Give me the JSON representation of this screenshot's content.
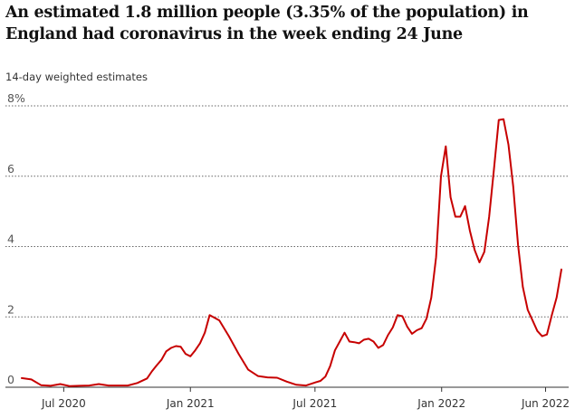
{
  "chart_data": {
    "type": "line",
    "title": "An estimated 1.8 million people (3.35% of the population) in England had coronavirus in the week ending 24 June",
    "subtitle": "14-day weighted estimates",
    "ylim": [
      0,
      8
    ],
    "y_ticks": [
      "0",
      "2",
      "4",
      "6",
      "8%"
    ],
    "y_tick_values": [
      0,
      2,
      4,
      6,
      8
    ],
    "x_ticks": [
      "Jul 2020",
      "Jan 2021",
      "Jul 2021",
      "Jan 2022",
      "Jun 2022"
    ],
    "x_tick_dates": [
      "2020-07-01",
      "2021-01-01",
      "2021-07-01",
      "2022-01-01",
      "2022-06-01"
    ],
    "grid": true,
    "line_color": "#c70000",
    "series": [
      {
        "x": [
          "2020-05-01",
          "2020-05-15",
          "2020-05-29",
          "2020-06-12",
          "2020-06-26",
          "2020-07-10",
          "2020-07-24",
          "2020-08-07",
          "2020-08-21",
          "2020-09-04",
          "2020-09-18",
          "2020-10-02",
          "2020-10-16",
          "2020-10-30",
          "2020-11-06",
          "2020-11-13",
          "2020-11-20",
          "2020-11-27",
          "2020-12-04",
          "2020-12-11",
          "2020-12-18",
          "2020-12-25",
          "2021-01-01",
          "2021-01-08",
          "2021-01-15",
          "2021-01-22",
          "2021-01-29",
          "2021-02-12",
          "2021-02-26",
          "2021-03-12",
          "2021-03-26",
          "2021-04-09",
          "2021-04-23",
          "2021-05-07",
          "2021-05-21",
          "2021-06-04",
          "2021-06-18",
          "2021-07-02",
          "2021-07-09",
          "2021-07-16",
          "2021-07-23",
          "2021-07-30",
          "2021-08-06",
          "2021-08-13",
          "2021-08-20",
          "2021-08-27",
          "2021-09-03",
          "2021-09-10",
          "2021-09-17",
          "2021-09-24",
          "2021-10-01",
          "2021-10-08",
          "2021-10-15",
          "2021-10-22",
          "2021-10-29",
          "2021-11-05",
          "2021-11-12",
          "2021-11-19",
          "2021-11-26",
          "2021-12-03",
          "2021-12-10",
          "2021-12-17",
          "2021-12-24",
          "2021-12-31",
          "2022-01-07",
          "2022-01-14",
          "2022-01-21",
          "2022-01-28",
          "2022-02-04",
          "2022-02-11",
          "2022-02-18",
          "2022-02-25",
          "2022-03-04",
          "2022-03-11",
          "2022-03-18",
          "2022-03-25",
          "2022-04-01",
          "2022-04-08",
          "2022-04-15",
          "2022-04-22",
          "2022-04-29",
          "2022-05-06",
          "2022-05-13",
          "2022-05-20",
          "2022-05-27",
          "2022-06-03",
          "2022-06-10",
          "2022-06-17",
          "2022-06-24"
        ],
        "values": [
          0.26,
          0.22,
          0.06,
          0.04,
          0.09,
          0.03,
          0.04,
          0.05,
          0.09,
          0.05,
          0.05,
          0.05,
          0.12,
          0.25,
          0.45,
          0.62,
          0.78,
          1.02,
          1.12,
          1.17,
          1.15,
          0.95,
          0.88,
          1.05,
          1.25,
          1.55,
          2.05,
          1.9,
          1.45,
          0.95,
          0.5,
          0.32,
          0.28,
          0.27,
          0.16,
          0.07,
          0.05,
          0.14,
          0.18,
          0.3,
          0.6,
          1.05,
          1.3,
          1.55,
          1.3,
          1.28,
          1.25,
          1.35,
          1.38,
          1.3,
          1.12,
          1.2,
          1.48,
          1.7,
          2.05,
          2.02,
          1.72,
          1.52,
          1.62,
          1.68,
          1.95,
          2.55,
          3.7,
          6.0,
          6.85,
          5.4,
          4.85,
          4.85,
          5.15,
          4.45,
          3.9,
          3.55,
          3.85,
          4.85,
          6.2,
          7.6,
          7.62,
          6.9,
          5.7,
          4.05,
          2.85,
          2.2,
          1.9,
          1.6,
          1.45,
          1.5,
          2.05,
          2.55,
          3.35
        ]
      }
    ]
  }
}
